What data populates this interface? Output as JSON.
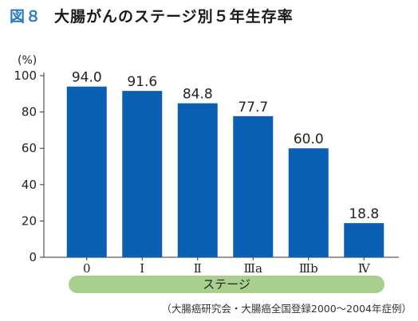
{
  "figure": {
    "number": "図８",
    "title": "大腸がんのステージ別５年生存率"
  },
  "chart_data": {
    "type": "bar",
    "categories": [
      "0",
      "Ⅰ",
      "Ⅱ",
      "Ⅲa",
      "Ⅲb",
      "Ⅳ"
    ],
    "values": [
      94.0,
      91.6,
      84.8,
      77.7,
      60.0,
      18.8
    ],
    "value_labels": [
      "94.0",
      "91.6",
      "84.8",
      "77.7",
      "60.0",
      "18.8"
    ],
    "title": "大腸がんのステージ別５年生存率",
    "xlabel": "ステージ",
    "ylabel": "(%)",
    "ylim": [
      0,
      100
    ],
    "yticks": [
      0,
      20,
      40,
      60,
      80,
      100
    ],
    "grid": false,
    "bar_color": "#0b5fb3"
  },
  "source": "（大腸癌研究会・大腸癌全国登録2000〜2004年症例）"
}
